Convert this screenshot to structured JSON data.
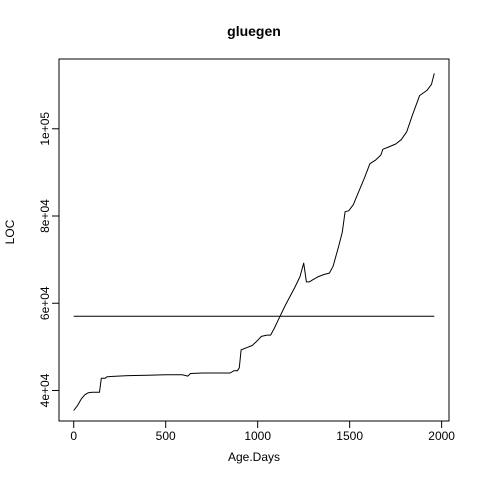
{
  "chart_data": {
    "type": "line",
    "title": "gluegen",
    "xlabel": "Age.Days",
    "ylabel": "LOC",
    "xlim": [
      -80,
      2040
    ],
    "ylim": [
      33000,
      116000
    ],
    "x_ticks": [
      0,
      500,
      1000,
      1500,
      2000
    ],
    "x_tick_labels": [
      "0",
      "500",
      "1000",
      "1500",
      "2000"
    ],
    "y_ticks": [
      40000,
      60000,
      80000,
      100000
    ],
    "y_tick_labels": [
      "4e+04",
      "6e+04",
      "8e+04",
      "1e+05"
    ],
    "grid": false,
    "legend": "none",
    "line_color": "#000000",
    "series": [
      {
        "values": [
          [
            0,
            35400
          ],
          [
            20,
            36500
          ],
          [
            40,
            38000
          ],
          [
            60,
            39000
          ],
          [
            80,
            39500
          ],
          [
            100,
            39600
          ],
          [
            130,
            39600
          ],
          [
            140,
            39600
          ],
          [
            150,
            42800
          ],
          [
            170,
            42800
          ],
          [
            180,
            43100
          ],
          [
            200,
            43200
          ],
          [
            300,
            43400
          ],
          [
            400,
            43500
          ],
          [
            500,
            43600
          ],
          [
            590,
            43600
          ],
          [
            610,
            43400
          ],
          [
            620,
            43300
          ],
          [
            635,
            43900
          ],
          [
            700,
            44000
          ],
          [
            800,
            44000
          ],
          [
            850,
            44000
          ],
          [
            870,
            44500
          ],
          [
            890,
            44500
          ],
          [
            900,
            45200
          ],
          [
            910,
            49300
          ],
          [
            940,
            49800
          ],
          [
            970,
            50300
          ],
          [
            1000,
            51500
          ],
          [
            1020,
            52400
          ],
          [
            1050,
            52700
          ],
          [
            1070,
            52700
          ],
          [
            1090,
            54200
          ],
          [
            1110,
            56000
          ],
          [
            1150,
            59500
          ],
          [
            1200,
            63500
          ],
          [
            1230,
            66100
          ],
          [
            1250,
            69200
          ],
          [
            1265,
            64900
          ],
          [
            1280,
            64900
          ],
          [
            1300,
            65400
          ],
          [
            1330,
            66100
          ],
          [
            1360,
            66600
          ],
          [
            1390,
            66900
          ],
          [
            1410,
            68500
          ],
          [
            1440,
            73000
          ],
          [
            1460,
            76300
          ],
          [
            1475,
            81000
          ],
          [
            1495,
            81200
          ],
          [
            1520,
            82600
          ],
          [
            1550,
            85700
          ],
          [
            1580,
            88700
          ],
          [
            1610,
            92000
          ],
          [
            1640,
            92800
          ],
          [
            1670,
            94000
          ],
          [
            1680,
            95300
          ],
          [
            1710,
            95800
          ],
          [
            1750,
            96500
          ],
          [
            1780,
            97500
          ],
          [
            1810,
            99300
          ],
          [
            1840,
            103000
          ],
          [
            1880,
            107600
          ],
          [
            1920,
            108800
          ],
          [
            1945,
            110200
          ],
          [
            1960,
            112700
          ]
        ]
      },
      {
        "values": [
          [
            0,
            57000
          ],
          [
            1960,
            57000
          ]
        ]
      }
    ]
  }
}
